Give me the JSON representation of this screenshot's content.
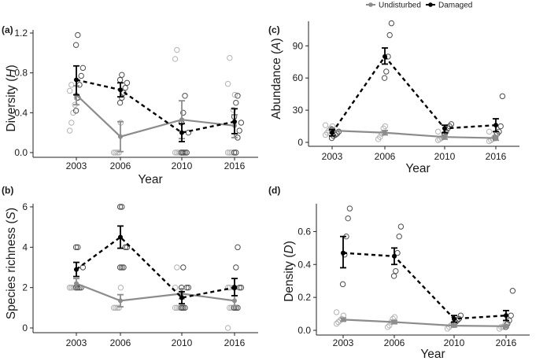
{
  "legend": {
    "entries": [
      {
        "name": "Undisturbed",
        "color": "#8c8c8c"
      },
      {
        "name": "Damaged",
        "color": "#000000"
      }
    ]
  },
  "colors": {
    "undisturbed": "#8c8c8c",
    "undisturbed_points": "#b3b3b3",
    "damaged": "#000000",
    "damaged_points": "#4d4d4d"
  },
  "chart_data": [
    {
      "id": "a",
      "type": "line",
      "panel_label": "(a)",
      "xlabel": "Year",
      "ylabel": "Diversity",
      "ylabel_symbol": "H",
      "categories": [
        "2003",
        "2006",
        "2010",
        "2016"
      ],
      "ylim": [
        0,
        1.2
      ],
      "yticks": [
        0.0,
        0.4,
        0.8,
        1.2
      ],
      "ytick_labels": [
        "0.0",
        "0.4",
        "0.8",
        "1.2"
      ],
      "series": [
        {
          "name": "Undisturbed",
          "style": "solid",
          "values": [
            0.58,
            0.16,
            0.33,
            0.27
          ],
          "err_low": [
            0.48,
            0.01,
            0.14,
            0.15
          ],
          "err_high": [
            0.67,
            0.31,
            0.52,
            0.38
          ],
          "points": [
            [
              0.22,
              0.3,
              0.4,
              0.48,
              0.55,
              0.62,
              0.68
            ],
            [
              0,
              0,
              0,
              0,
              0.3
            ],
            [
              0,
              0,
              0,
              0,
              0,
              0.94,
              1.03
            ],
            [
              0,
              0,
              0,
              0.43,
              0.58,
              0.69,
              0.95
            ]
          ]
        },
        {
          "name": "Damaged",
          "style": "dashed",
          "values": [
            0.73,
            0.63,
            0.2,
            0.31
          ],
          "err_low": [
            0.58,
            0.56,
            0.11,
            0.19
          ],
          "err_high": [
            0.87,
            0.7,
            0.29,
            0.44
          ],
          "points": [
            [
              0.42,
              0.55,
              0.68,
              0.77,
              0.85,
              1.08,
              1.18
            ],
            [
              0.5,
              0.55,
              0.6,
              0.65,
              0.7,
              0.73,
              0.78
            ],
            [
              0,
              0,
              0,
              0,
              0.2,
              0.3,
              0.4,
              0.57
            ],
            [
              0,
              0,
              0.15,
              0.22,
              0.3,
              0.36,
              0.5,
              0.57
            ]
          ]
        }
      ]
    },
    {
      "id": "b",
      "type": "line",
      "panel_label": "(b)",
      "xlabel": "",
      "ylabel": "Species richness",
      "ylabel_symbol": "S",
      "categories": [
        "2003",
        "2006",
        "2010",
        "2016"
      ],
      "ylim": [
        0,
        6
      ],
      "yticks": [
        0,
        2,
        4,
        6
      ],
      "ytick_labels": [
        "0",
        "2",
        "4",
        "6"
      ],
      "series": [
        {
          "name": "Undisturbed",
          "style": "solid",
          "values": [
            2.2,
            1.35,
            1.7,
            1.35
          ],
          "err_low": [
            1.95,
            1.05,
            1.45,
            1.1
          ],
          "err_high": [
            2.45,
            1.65,
            1.95,
            1.6
          ],
          "points": [
            [
              2,
              2,
              2,
              2,
              2,
              2,
              2
            ],
            [
              1,
              1,
              1,
              1,
              2
            ],
            [
              1,
              1,
              1,
              1,
              1,
              2,
              3
            ],
            [
              0,
              1,
              1,
              1,
              2,
              2,
              2
            ]
          ]
        },
        {
          "name": "Damaged",
          "style": "dashed",
          "values": [
            2.9,
            4.5,
            1.5,
            2.0
          ],
          "err_low": [
            2.55,
            3.95,
            1.2,
            1.6
          ],
          "err_high": [
            3.25,
            5.05,
            1.8,
            2.45
          ],
          "points": [
            [
              2,
              2,
              2,
              2,
              3,
              4,
              4
            ],
            [
              3,
              3,
              3,
              4,
              4,
              6,
              6
            ],
            [
              1,
              1,
              1,
              2,
              2,
              2,
              3
            ],
            [
              1,
              1,
              1,
              2,
              2,
              2,
              3,
              4
            ]
          ]
        }
      ]
    },
    {
      "id": "c",
      "type": "line",
      "panel_label": "(c)",
      "xlabel": "Year",
      "ylabel": "Abundance",
      "ylabel_symbol": "A",
      "categories": [
        "2003",
        "2006",
        "2010",
        "2016"
      ],
      "ylim": [
        0,
        110
      ],
      "yticks": [
        0,
        30,
        60,
        90
      ],
      "ytick_labels": [
        "0",
        "30",
        "60",
        "90"
      ],
      "series": [
        {
          "name": "Undisturbed",
          "style": "solid",
          "values": [
            11,
            9,
            5,
            4
          ],
          "err_low": [
            9,
            7,
            3,
            2
          ],
          "err_high": [
            13,
            11,
            7,
            6
          ],
          "points": [
            [
              7,
              9,
              11,
              13,
              15,
              16
            ],
            [
              3,
              5,
              8,
              13,
              15
            ],
            [
              2,
              3,
              4,
              5,
              7,
              10
            ],
            [
              1,
              2,
              3,
              5,
              9,
              10
            ]
          ]
        },
        {
          "name": "Damaged",
          "style": "dashed",
          "values": [
            9,
            80,
            13,
            16
          ],
          "err_low": [
            6,
            73,
            9,
            10
          ],
          "err_high": [
            12,
            88,
            16,
            22
          ],
          "points": [
            [
              4,
              6,
              7,
              8,
              10,
              12
            ],
            [
              60,
              66,
              80,
              100,
              111
            ],
            [
              8,
              10,
              13,
              15,
              17
            ],
            [
              4,
              8,
              10,
              15,
              43
            ]
          ]
        }
      ]
    },
    {
      "id": "d",
      "type": "line",
      "panel_label": "(d)",
      "xlabel": "Year",
      "ylabel": "Density",
      "ylabel_symbol": "D",
      "categories": [
        "2003",
        "2006",
        "2010",
        "2016"
      ],
      "ylim": [
        0,
        0.75
      ],
      "yticks": [
        0.0,
        0.2,
        0.4,
        0.6
      ],
      "ytick_labels": [
        "0.0",
        "0.2",
        "0.4",
        "0.6"
      ],
      "series": [
        {
          "name": "Undisturbed",
          "style": "solid",
          "values": [
            0.065,
            0.05,
            0.028,
            0.025
          ],
          "err_low": [
            0.055,
            0.04,
            0.02,
            0.017
          ],
          "err_high": [
            0.075,
            0.06,
            0.036,
            0.033
          ],
          "points": [
            [
              0.04,
              0.05,
              0.06,
              0.07,
              0.09,
              0.11
            ],
            [
              0.02,
              0.03,
              0.05,
              0.07,
              0.08
            ],
            [
              0.01,
              0.02,
              0.03,
              0.04,
              0.05
            ],
            [
              0.01,
              0.02,
              0.02,
              0.03,
              0.05
            ]
          ]
        },
        {
          "name": "Damaged",
          "style": "dashed",
          "values": [
            0.47,
            0.45,
            0.07,
            0.09
          ],
          "err_low": [
            0.38,
            0.4,
            0.05,
            0.06
          ],
          "err_high": [
            0.57,
            0.5,
            0.09,
            0.12
          ],
          "points": [
            [
              0.28,
              0.46,
              0.57,
              0.68,
              0.74
            ],
            [
              0.33,
              0.36,
              0.47,
              0.57,
              0.63
            ],
            [
              0.04,
              0.05,
              0.06,
              0.07,
              0.09
            ],
            [
              0.02,
              0.04,
              0.06,
              0.09,
              0.24
            ]
          ]
        }
      ]
    }
  ]
}
